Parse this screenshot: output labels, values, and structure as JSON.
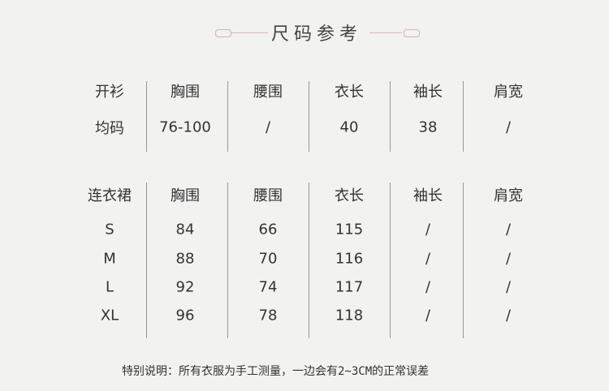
{
  "title": "尺码参考",
  "table1": {
    "headers": [
      "开衫",
      "胸围",
      "腰围",
      "衣长",
      "袖长",
      "肩宽"
    ],
    "rows": [
      [
        "均码",
        "76-100",
        "/",
        "40",
        "38",
        "/"
      ]
    ]
  },
  "table2": {
    "headers": [
      "连衣裙",
      "胸围",
      "腰围",
      "衣长",
      "袖长",
      "肩宽"
    ],
    "rows": [
      [
        "S",
        "84",
        "66",
        "115",
        "/",
        "/"
      ],
      [
        "M",
        "88",
        "70",
        "116",
        "/",
        "/"
      ],
      [
        "L",
        "92",
        "74",
        "117",
        "/",
        "/"
      ],
      [
        "XL",
        "96",
        "78",
        "118",
        "/",
        "/"
      ]
    ]
  },
  "note": "特别说明：所有衣服为手工测量，一边会有2~3CM的正常误差"
}
